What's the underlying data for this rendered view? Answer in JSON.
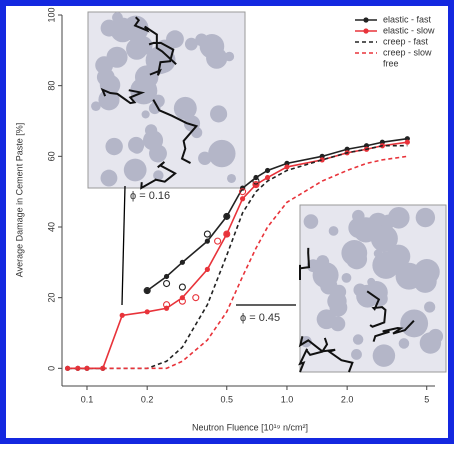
{
  "chart_data": {
    "type": "line",
    "x_label": "Neutron Fluence [10¹⁹ n/cm²]",
    "y_label": "Average Damage in Cement Paste [%]",
    "log_x": true,
    "xlim": [
      0.075,
      5.5
    ],
    "ylim": [
      -5,
      100
    ],
    "xticks": [
      0.1,
      0.2,
      0.5,
      {
        "value": 1,
        "label": "1.0"
      },
      {
        "value": 2,
        "label": "2.0"
      },
      5
    ],
    "yticks": [
      0,
      20,
      40,
      60,
      80,
      100
    ],
    "legend": "top-right",
    "legend_note": "free",
    "annotations": [
      "ϕ = 0.16",
      "ϕ = 0.45"
    ],
    "x": [
      0.08,
      0.09,
      0.1,
      0.12,
      0.15,
      0.2,
      0.25,
      0.3,
      0.4,
      0.5,
      0.6,
      0.7,
      0.8,
      1.0,
      1.5,
      2.0,
      2.5,
      3.0,
      4.0
    ],
    "series": [
      {
        "name": "elastic - fast",
        "color": "#222222",
        "dash": false,
        "marker": true,
        "values": [
          0,
          0,
          0,
          0,
          null,
          22,
          26,
          30,
          36,
          43,
          51,
          54,
          56,
          58,
          60,
          62,
          63,
          64,
          65
        ]
      },
      {
        "name": "elastic - slow",
        "color": "#e8333a",
        "dash": false,
        "marker": true,
        "values": [
          0,
          0,
          0,
          0,
          15,
          16,
          17,
          20,
          28,
          38,
          48,
          52,
          54,
          57,
          59,
          61,
          62,
          63,
          64
        ]
      },
      {
        "name": "creep - fast",
        "color": "#222222",
        "dash": true,
        "marker": false,
        "values": [
          0,
          0,
          0,
          0,
          0,
          0,
          2,
          6,
          18,
          32,
          44,
          50,
          53,
          56,
          59,
          61,
          62,
          63,
          63
        ]
      },
      {
        "name": "creep - slow",
        "color": "#e8333a",
        "dash": true,
        "marker": false,
        "values": [
          0,
          0,
          0,
          0,
          0,
          0,
          0,
          2,
          8,
          16,
          26,
          34,
          40,
          47,
          53,
          56,
          58,
          59,
          60
        ]
      }
    ],
    "points": [
      {
        "color": "#222222",
        "x": [
          0.2,
          0.25,
          0.3,
          0.4,
          0.5,
          0.7
        ],
        "values": [
          22,
          24,
          23,
          38,
          43,
          53
        ]
      },
      {
        "color": "#e8333a",
        "x": [
          0.25,
          0.3,
          0.35,
          0.45,
          0.5,
          0.6,
          0.7
        ],
        "values": [
          18,
          19,
          20,
          36,
          38,
          50,
          52
        ]
      }
    ]
  }
}
